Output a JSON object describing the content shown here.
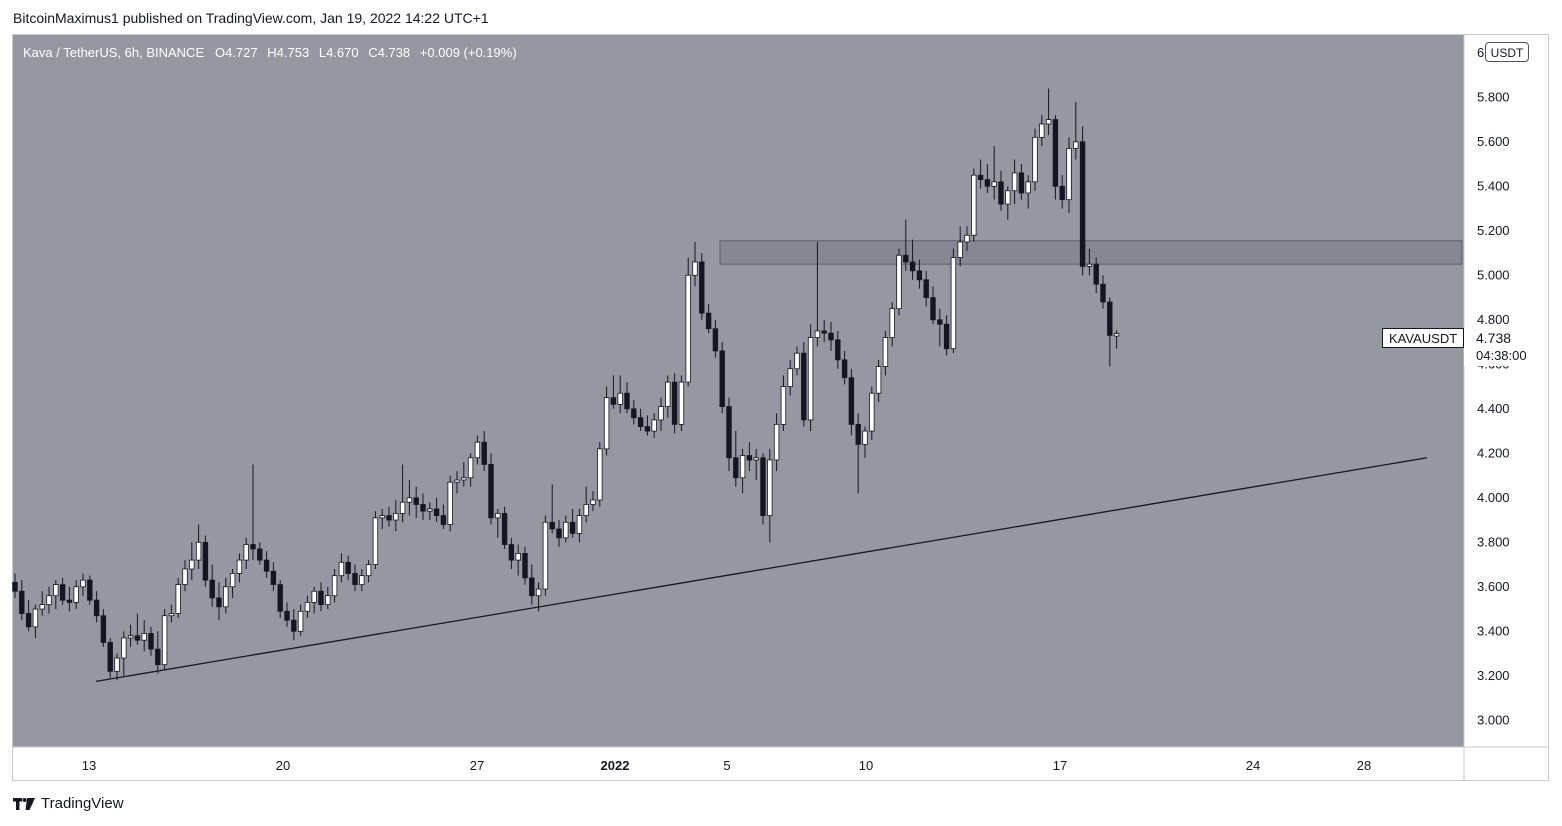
{
  "header": {
    "published_by": "BitcoinMaximus1 published on TradingView.com, Jan 19, 2022 14:22 UTC+1"
  },
  "legend": {
    "symbol": "Kava / TetherUS, 6h, BINANCE",
    "o_label": "O",
    "o_value": "4.727",
    "h_label": "H",
    "h_value": "4.753",
    "l_label": "L",
    "l_value": "4.670",
    "c_label": "C",
    "c_value": "4.738",
    "change": "+0.009 (+0.19%)"
  },
  "price_axis": {
    "currency_badge": "USDT",
    "ticks": [
      "6.000",
      "5.800",
      "5.600",
      "5.400",
      "5.200",
      "5.000",
      "4.800",
      "4.600",
      "4.400",
      "4.200",
      "4.000",
      "3.800",
      "3.600",
      "3.400",
      "3.200",
      "3.000"
    ]
  },
  "time_axis": {
    "ticks": [
      {
        "label": "13",
        "bold": false
      },
      {
        "label": "20",
        "bold": false
      },
      {
        "label": "27",
        "bold": false
      },
      {
        "label": "2022",
        "bold": true
      },
      {
        "label": "5",
        "bold": false
      },
      {
        "label": "10",
        "bold": false
      },
      {
        "label": "17",
        "bold": false
      },
      {
        "label": "24",
        "bold": false
      },
      {
        "label": "28",
        "bold": false
      }
    ]
  },
  "last_price": {
    "symbol": "KAVAUSDT",
    "price": "4.738",
    "countdown": "04:38:00"
  },
  "footer": {
    "brand": "TradingView"
  },
  "colors": {
    "chart_bg": "#9598a1",
    "up_candle": "#ffffff",
    "down_candle": "#131722",
    "trendline": "#131722",
    "zone_fill": "#787b86",
    "text": "#131722"
  },
  "chart_data": {
    "type": "candlestick",
    "title": "Kava / TetherUS, 6h, BINANCE",
    "timeframe": "6h",
    "ylim": [
      2.88,
      6.08
    ],
    "grid": false,
    "candles": [
      {
        "o": 3.62,
        "h": 3.66,
        "l": 3.55,
        "c": 3.58
      },
      {
        "o": 3.58,
        "h": 3.63,
        "l": 3.45,
        "c": 3.48
      },
      {
        "o": 3.48,
        "h": 3.54,
        "l": 3.4,
        "c": 3.42
      },
      {
        "o": 3.42,
        "h": 3.52,
        "l": 3.37,
        "c": 3.5
      },
      {
        "o": 3.5,
        "h": 3.58,
        "l": 3.47,
        "c": 3.52
      },
      {
        "o": 3.52,
        "h": 3.6,
        "l": 3.48,
        "c": 3.56
      },
      {
        "o": 3.56,
        "h": 3.63,
        "l": 3.5,
        "c": 3.61
      },
      {
        "o": 3.61,
        "h": 3.64,
        "l": 3.52,
        "c": 3.54
      },
      {
        "o": 3.54,
        "h": 3.6,
        "l": 3.49,
        "c": 3.53
      },
      {
        "o": 3.53,
        "h": 3.63,
        "l": 3.5,
        "c": 3.6
      },
      {
        "o": 3.6,
        "h": 3.66,
        "l": 3.56,
        "c": 3.63
      },
      {
        "o": 3.63,
        "h": 3.65,
        "l": 3.52,
        "c": 3.54
      },
      {
        "o": 3.54,
        "h": 3.58,
        "l": 3.44,
        "c": 3.47
      },
      {
        "o": 3.47,
        "h": 3.5,
        "l": 3.33,
        "c": 3.35
      },
      {
        "o": 3.35,
        "h": 3.37,
        "l": 3.19,
        "c": 3.22
      },
      {
        "o": 3.22,
        "h": 3.3,
        "l": 3.18,
        "c": 3.28
      },
      {
        "o": 3.28,
        "h": 3.4,
        "l": 3.2,
        "c": 3.37
      },
      {
        "o": 3.37,
        "h": 3.43,
        "l": 3.33,
        "c": 3.38
      },
      {
        "o": 3.38,
        "h": 3.48,
        "l": 3.34,
        "c": 3.36
      },
      {
        "o": 3.36,
        "h": 3.45,
        "l": 3.31,
        "c": 3.39
      },
      {
        "o": 3.39,
        "h": 3.42,
        "l": 3.29,
        "c": 3.32
      },
      {
        "o": 3.32,
        "h": 3.4,
        "l": 3.21,
        "c": 3.25
      },
      {
        "o": 3.25,
        "h": 3.5,
        "l": 3.23,
        "c": 3.47
      },
      {
        "o": 3.47,
        "h": 3.52,
        "l": 3.44,
        "c": 3.48
      },
      {
        "o": 3.48,
        "h": 3.64,
        "l": 3.46,
        "c": 3.61
      },
      {
        "o": 3.61,
        "h": 3.72,
        "l": 3.58,
        "c": 3.68
      },
      {
        "o": 3.68,
        "h": 3.8,
        "l": 3.63,
        "c": 3.72
      },
      {
        "o": 3.72,
        "h": 3.88,
        "l": 3.68,
        "c": 3.8
      },
      {
        "o": 3.8,
        "h": 3.83,
        "l": 3.6,
        "c": 3.63
      },
      {
        "o": 3.63,
        "h": 3.7,
        "l": 3.51,
        "c": 3.55
      },
      {
        "o": 3.55,
        "h": 3.62,
        "l": 3.45,
        "c": 3.51
      },
      {
        "o": 3.51,
        "h": 3.64,
        "l": 3.48,
        "c": 3.6
      },
      {
        "o": 3.6,
        "h": 3.68,
        "l": 3.55,
        "c": 3.66
      },
      {
        "o": 3.66,
        "h": 3.75,
        "l": 3.62,
        "c": 3.72
      },
      {
        "o": 3.72,
        "h": 3.82,
        "l": 3.68,
        "c": 3.79
      },
      {
        "o": 3.79,
        "h": 4.15,
        "l": 3.72,
        "c": 3.77
      },
      {
        "o": 3.77,
        "h": 3.8,
        "l": 3.7,
        "c": 3.72
      },
      {
        "o": 3.72,
        "h": 3.76,
        "l": 3.64,
        "c": 3.67
      },
      {
        "o": 3.67,
        "h": 3.71,
        "l": 3.58,
        "c": 3.61
      },
      {
        "o": 3.61,
        "h": 3.63,
        "l": 3.46,
        "c": 3.49
      },
      {
        "o": 3.49,
        "h": 3.53,
        "l": 3.42,
        "c": 3.45
      },
      {
        "o": 3.45,
        "h": 3.5,
        "l": 3.36,
        "c": 3.4
      },
      {
        "o": 3.4,
        "h": 3.52,
        "l": 3.38,
        "c": 3.49
      },
      {
        "o": 3.49,
        "h": 3.56,
        "l": 3.46,
        "c": 3.53
      },
      {
        "o": 3.53,
        "h": 3.6,
        "l": 3.48,
        "c": 3.58
      },
      {
        "o": 3.58,
        "h": 3.62,
        "l": 3.49,
        "c": 3.52
      },
      {
        "o": 3.52,
        "h": 3.6,
        "l": 3.5,
        "c": 3.56
      },
      {
        "o": 3.56,
        "h": 3.68,
        "l": 3.53,
        "c": 3.65
      },
      {
        "o": 3.65,
        "h": 3.75,
        "l": 3.62,
        "c": 3.71
      },
      {
        "o": 3.71,
        "h": 3.74,
        "l": 3.63,
        "c": 3.66
      },
      {
        "o": 3.66,
        "h": 3.7,
        "l": 3.58,
        "c": 3.61
      },
      {
        "o": 3.61,
        "h": 3.68,
        "l": 3.58,
        "c": 3.65
      },
      {
        "o": 3.65,
        "h": 3.72,
        "l": 3.62,
        "c": 3.7
      },
      {
        "o": 3.7,
        "h": 3.94,
        "l": 3.68,
        "c": 3.91
      },
      {
        "o": 3.91,
        "h": 3.95,
        "l": 3.86,
        "c": 3.92
      },
      {
        "o": 3.92,
        "h": 3.96,
        "l": 3.87,
        "c": 3.9
      },
      {
        "o": 3.9,
        "h": 3.99,
        "l": 3.85,
        "c": 3.93
      },
      {
        "o": 3.93,
        "h": 4.15,
        "l": 3.89,
        "c": 3.98
      },
      {
        "o": 3.98,
        "h": 4.08,
        "l": 3.92,
        "c": 4.0
      },
      {
        "o": 4.0,
        "h": 4.05,
        "l": 3.91,
        "c": 3.97
      },
      {
        "o": 3.97,
        "h": 4.02,
        "l": 3.9,
        "c": 3.94
      },
      {
        "o": 3.94,
        "h": 3.98,
        "l": 3.9,
        "c": 3.95
      },
      {
        "o": 3.95,
        "h": 4.0,
        "l": 3.89,
        "c": 3.92
      },
      {
        "o": 3.92,
        "h": 3.97,
        "l": 3.86,
        "c": 3.88
      },
      {
        "o": 3.88,
        "h": 4.1,
        "l": 3.85,
        "c": 4.07
      },
      {
        "o": 4.07,
        "h": 4.12,
        "l": 4.02,
        "c": 4.08
      },
      {
        "o": 4.08,
        "h": 4.16,
        "l": 4.05,
        "c": 4.09
      },
      {
        "o": 4.09,
        "h": 4.2,
        "l": 4.05,
        "c": 4.18
      },
      {
        "o": 4.18,
        "h": 4.28,
        "l": 4.15,
        "c": 4.25
      },
      {
        "o": 4.25,
        "h": 4.3,
        "l": 4.12,
        "c": 4.15
      },
      {
        "o": 4.15,
        "h": 4.2,
        "l": 3.88,
        "c": 3.91
      },
      {
        "o": 3.91,
        "h": 3.95,
        "l": 3.82,
        "c": 3.93
      },
      {
        "o": 3.93,
        "h": 3.96,
        "l": 3.77,
        "c": 3.79
      },
      {
        "o": 3.79,
        "h": 3.82,
        "l": 3.68,
        "c": 3.72
      },
      {
        "o": 3.72,
        "h": 3.79,
        "l": 3.65,
        "c": 3.75
      },
      {
        "o": 3.75,
        "h": 3.78,
        "l": 3.61,
        "c": 3.64
      },
      {
        "o": 3.64,
        "h": 3.7,
        "l": 3.52,
        "c": 3.56
      },
      {
        "o": 3.56,
        "h": 3.62,
        "l": 3.49,
        "c": 3.59
      },
      {
        "o": 3.59,
        "h": 3.92,
        "l": 3.56,
        "c": 3.89
      },
      {
        "o": 3.89,
        "h": 4.06,
        "l": 3.84,
        "c": 3.86
      },
      {
        "o": 3.86,
        "h": 3.9,
        "l": 3.78,
        "c": 3.82
      },
      {
        "o": 3.82,
        "h": 3.92,
        "l": 3.8,
        "c": 3.89
      },
      {
        "o": 3.89,
        "h": 3.95,
        "l": 3.82,
        "c": 3.84
      },
      {
        "o": 3.84,
        "h": 3.95,
        "l": 3.8,
        "c": 3.92
      },
      {
        "o": 3.92,
        "h": 4.05,
        "l": 3.89,
        "c": 3.97
      },
      {
        "o": 3.97,
        "h": 4.03,
        "l": 3.94,
        "c": 3.99
      },
      {
        "o": 3.99,
        "h": 4.25,
        "l": 3.96,
        "c": 4.22
      },
      {
        "o": 4.22,
        "h": 4.5,
        "l": 4.19,
        "c": 4.45
      },
      {
        "o": 4.45,
        "h": 4.55,
        "l": 4.4,
        "c": 4.42
      },
      {
        "o": 4.42,
        "h": 4.55,
        "l": 4.38,
        "c": 4.47
      },
      {
        "o": 4.47,
        "h": 4.52,
        "l": 4.38,
        "c": 4.4
      },
      {
        "o": 4.4,
        "h": 4.44,
        "l": 4.33,
        "c": 4.36
      },
      {
        "o": 4.36,
        "h": 4.4,
        "l": 4.3,
        "c": 4.32
      },
      {
        "o": 4.32,
        "h": 4.37,
        "l": 4.28,
        "c": 4.3
      },
      {
        "o": 4.3,
        "h": 4.38,
        "l": 4.27,
        "c": 4.35
      },
      {
        "o": 4.35,
        "h": 4.45,
        "l": 4.3,
        "c": 4.41
      },
      {
        "o": 4.41,
        "h": 4.55,
        "l": 4.36,
        "c": 4.52
      },
      {
        "o": 4.52,
        "h": 4.56,
        "l": 4.29,
        "c": 4.33
      },
      {
        "o": 4.33,
        "h": 4.55,
        "l": 4.3,
        "c": 4.52
      },
      {
        "o": 4.52,
        "h": 5.08,
        "l": 4.5,
        "c": 5.0
      },
      {
        "o": 5.0,
        "h": 5.15,
        "l": 4.95,
        "c": 5.06
      },
      {
        "o": 5.06,
        "h": 5.1,
        "l": 4.8,
        "c": 4.83
      },
      {
        "o": 4.83,
        "h": 4.87,
        "l": 4.74,
        "c": 4.76
      },
      {
        "o": 4.76,
        "h": 4.8,
        "l": 4.63,
        "c": 4.66
      },
      {
        "o": 4.66,
        "h": 4.7,
        "l": 4.38,
        "c": 4.41
      },
      {
        "o": 4.41,
        "h": 4.45,
        "l": 4.12,
        "c": 4.18
      },
      {
        "o": 4.18,
        "h": 4.3,
        "l": 4.05,
        "c": 4.09
      },
      {
        "o": 4.09,
        "h": 4.22,
        "l": 4.02,
        "c": 4.19
      },
      {
        "o": 4.19,
        "h": 4.25,
        "l": 4.12,
        "c": 4.17
      },
      {
        "o": 4.17,
        "h": 4.22,
        "l": 4.08,
        "c": 4.18
      },
      {
        "o": 4.18,
        "h": 4.2,
        "l": 3.88,
        "c": 3.92
      },
      {
        "o": 3.92,
        "h": 4.22,
        "l": 3.8,
        "c": 4.17
      },
      {
        "o": 4.17,
        "h": 4.38,
        "l": 4.12,
        "c": 4.33
      },
      {
        "o": 4.33,
        "h": 4.55,
        "l": 4.3,
        "c": 4.5
      },
      {
        "o": 4.5,
        "h": 4.62,
        "l": 4.46,
        "c": 4.58
      },
      {
        "o": 4.58,
        "h": 4.68,
        "l": 4.55,
        "c": 4.65
      },
      {
        "o": 4.65,
        "h": 4.7,
        "l": 4.32,
        "c": 4.35
      },
      {
        "o": 4.35,
        "h": 4.78,
        "l": 4.3,
        "c": 4.72
      },
      {
        "o": 4.72,
        "h": 5.15,
        "l": 4.68,
        "c": 4.75
      },
      {
        "o": 4.75,
        "h": 4.8,
        "l": 4.7,
        "c": 4.74
      },
      {
        "o": 4.74,
        "h": 4.79,
        "l": 4.66,
        "c": 4.71
      },
      {
        "o": 4.71,
        "h": 4.75,
        "l": 4.58,
        "c": 4.62
      },
      {
        "o": 4.62,
        "h": 4.66,
        "l": 4.51,
        "c": 4.54
      },
      {
        "o": 4.54,
        "h": 4.58,
        "l": 4.28,
        "c": 4.33
      },
      {
        "o": 4.33,
        "h": 4.38,
        "l": 4.02,
        "c": 4.24
      },
      {
        "o": 4.24,
        "h": 4.32,
        "l": 4.18,
        "c": 4.3
      },
      {
        "o": 4.3,
        "h": 4.5,
        "l": 4.26,
        "c": 4.47
      },
      {
        "o": 4.47,
        "h": 4.62,
        "l": 4.43,
        "c": 4.59
      },
      {
        "o": 4.59,
        "h": 4.75,
        "l": 4.55,
        "c": 4.72
      },
      {
        "o": 4.72,
        "h": 4.88,
        "l": 4.68,
        "c": 4.85
      },
      {
        "o": 4.85,
        "h": 5.12,
        "l": 4.82,
        "c": 5.09
      },
      {
        "o": 5.09,
        "h": 5.25,
        "l": 5.02,
        "c": 5.06
      },
      {
        "o": 5.06,
        "h": 5.16,
        "l": 4.98,
        "c": 5.02
      },
      {
        "o": 5.02,
        "h": 5.07,
        "l": 4.94,
        "c": 4.98
      },
      {
        "o": 4.98,
        "h": 5.02,
        "l": 4.86,
        "c": 4.9
      },
      {
        "o": 4.9,
        "h": 4.95,
        "l": 4.78,
        "c": 4.8
      },
      {
        "o": 4.8,
        "h": 4.85,
        "l": 4.68,
        "c": 4.78
      },
      {
        "o": 4.78,
        "h": 4.82,
        "l": 4.64,
        "c": 4.67
      },
      {
        "o": 4.67,
        "h": 5.12,
        "l": 4.65,
        "c": 5.08
      },
      {
        "o": 5.08,
        "h": 5.22,
        "l": 5.04,
        "c": 5.15
      },
      {
        "o": 5.15,
        "h": 5.22,
        "l": 5.11,
        "c": 5.18
      },
      {
        "o": 5.18,
        "h": 5.48,
        "l": 5.15,
        "c": 5.45
      },
      {
        "o": 5.45,
        "h": 5.52,
        "l": 5.39,
        "c": 5.43
      },
      {
        "o": 5.43,
        "h": 5.5,
        "l": 5.37,
        "c": 5.4
      },
      {
        "o": 5.4,
        "h": 5.58,
        "l": 5.34,
        "c": 5.42
      },
      {
        "o": 5.42,
        "h": 5.47,
        "l": 5.29,
        "c": 5.32
      },
      {
        "o": 5.32,
        "h": 5.4,
        "l": 5.25,
        "c": 5.38
      },
      {
        "o": 5.38,
        "h": 5.52,
        "l": 5.32,
        "c": 5.46
      },
      {
        "o": 5.46,
        "h": 5.5,
        "l": 5.34,
        "c": 5.37
      },
      {
        "o": 5.37,
        "h": 5.45,
        "l": 5.3,
        "c": 5.42
      },
      {
        "o": 5.42,
        "h": 5.66,
        "l": 5.38,
        "c": 5.62
      },
      {
        "o": 5.62,
        "h": 5.72,
        "l": 5.58,
        "c": 5.68
      },
      {
        "o": 5.68,
        "h": 5.84,
        "l": 5.63,
        "c": 5.7
      },
      {
        "o": 5.7,
        "h": 5.72,
        "l": 5.34,
        "c": 5.4
      },
      {
        "o": 5.4,
        "h": 5.45,
        "l": 5.3,
        "c": 5.34
      },
      {
        "o": 5.34,
        "h": 5.62,
        "l": 5.28,
        "c": 5.57
      },
      {
        "o": 5.57,
        "h": 5.78,
        "l": 5.52,
        "c": 5.6
      },
      {
        "o": 5.6,
        "h": 5.67,
        "l": 5.0,
        "c": 5.04
      },
      {
        "o": 5.04,
        "h": 5.12,
        "l": 5.0,
        "c": 5.05
      },
      {
        "o": 5.05,
        "h": 5.08,
        "l": 4.92,
        "c": 4.96
      },
      {
        "o": 4.96,
        "h": 5.0,
        "l": 4.85,
        "c": 4.88
      },
      {
        "o": 4.88,
        "h": 4.9,
        "l": 4.59,
        "c": 4.73
      },
      {
        "o": 4.727,
        "h": 4.753,
        "l": 4.67,
        "c": 4.738
      }
    ],
    "resistance_zone": {
      "low": 5.05,
      "high": 5.155
    },
    "trendline": {
      "start_price": 3.175,
      "end_price": 4.18
    }
  }
}
